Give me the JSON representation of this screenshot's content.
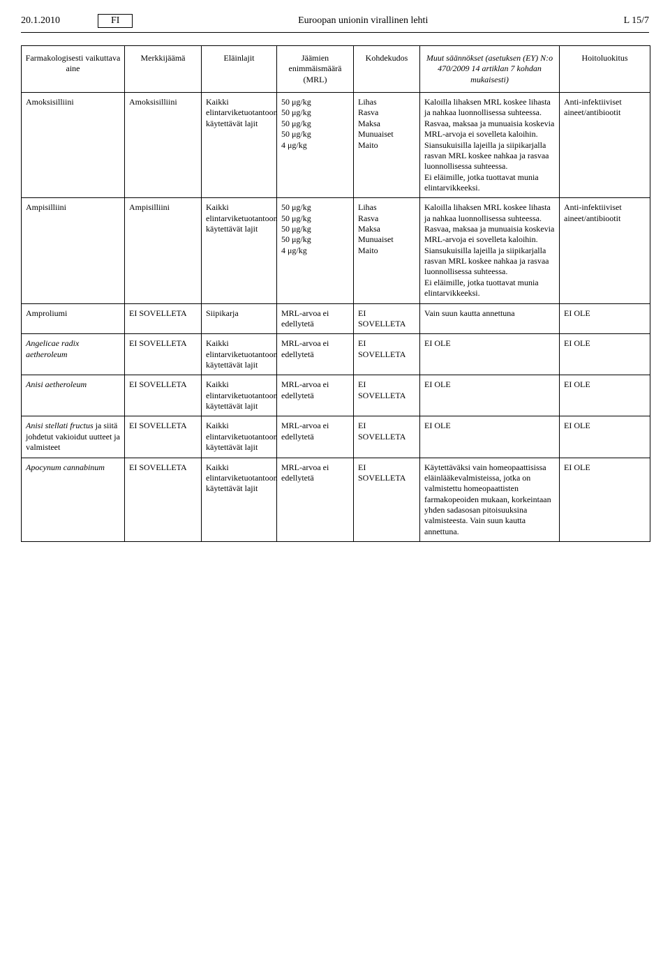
{
  "header": {
    "date": "20.1.2010",
    "lang": "FI",
    "title": "Euroopan unionin virallinen lehti",
    "page": "L 15/7"
  },
  "columns": {
    "c1": "Farmakologisesti vaikuttava aine",
    "c2": "Merkkijäämä",
    "c3": "Eläinlajit",
    "c4": "Jäämien enimmäismäärä (MRL)",
    "c5": "Kohdekudos",
    "c6": "Muut säännökset (asetuksen (EY) N:o 470/2009 14 artiklan 7 kohdan mukaisesti)",
    "c7": "Hoitoluokitus"
  },
  "rows": [
    {
      "c1": "Amoksisilliini",
      "c2": "Amoksisilliini",
      "c3": "Kaikki elintarviketuotantoon käytettävät lajit",
      "c4": "50 μg/kg\n50 μg/kg\n50 μg/kg\n50 μg/kg\n4 μg/kg",
      "c5": "Lihas\nRasva\nMaksa\nMunuaiset\nMaito",
      "c6": "Kaloilla lihaksen MRL koskee lihasta ja nahkaa luonnollisessa suhteessa.\nRasvaa, maksaa ja munuaisia koskevia MRL-arvoja ei sovelleta kaloihin.\nSiansukuisilla lajeilla ja siipikarjalla rasvan MRL koskee nahkaa ja rasvaa luonnollisessa suhteessa.\nEi eläimille, jotka tuottavat munia elintarvikkeeksi.",
      "c7": "Anti-infektiiviset aineet/antibiootit",
      "c1_italic": false
    },
    {
      "c1": "Ampisilliini",
      "c2": "Ampisilliini",
      "c3": "Kaikki elintarviketuotantoon käytettävät lajit",
      "c4": "50 μg/kg\n50 μg/kg\n50 μg/kg\n50 μg/kg\n4 μg/kg",
      "c5": "Lihas\nRasva\nMaksa\nMunuaiset\nMaito",
      "c6": "Kaloilla lihaksen MRL koskee lihasta ja nahkaa luonnollisessa suhteessa.\nRasvaa, maksaa ja munuaisia koskevia MRL-arvoja ei sovelleta kaloihin.\nSiansukuisilla lajeilla ja siipikarjalla rasvan MRL koskee nahkaa ja rasvaa luonnollisessa suhteessa.\nEi eläimille, jotka tuottavat munia elintarvikkeeksi.",
      "c7": "Anti-infektiiviset aineet/antibiootit",
      "c1_italic": false
    },
    {
      "c1": "Amproliumi",
      "c2": "EI SOVELLETA",
      "c3": "Siipikarja",
      "c4": "MRL-arvoa ei edellytetä",
      "c5": "EI SOVELLETA",
      "c6": "Vain suun kautta annettuna",
      "c7": "EI OLE",
      "c1_italic": false
    },
    {
      "c1": "Angelicae radix aetheroleum",
      "c2": "EI SOVELLETA",
      "c3": "Kaikki elintarviketuotantoon käytettävät lajit",
      "c4": "MRL-arvoa ei edellytetä",
      "c5": "EI SOVELLETA",
      "c6": "EI OLE",
      "c7": "EI OLE",
      "c1_italic": true
    },
    {
      "c1": "Anisi aetheroleum",
      "c2": "EI SOVELLETA",
      "c3": "Kaikki elintarviketuotantoon käytettävät lajit",
      "c4": "MRL-arvoa ei edellytetä",
      "c5": "EI SOVELLETA",
      "c6": "EI OLE",
      "c7": "EI OLE",
      "c1_italic": true
    },
    {
      "c1": "Anisi stellati fructus ja siitä johdetut vakioidut uutteet ja valmisteet",
      "c2": "EI SOVELLETA",
      "c3": "Kaikki elintarviketuotantoon käytettävät lajit",
      "c4": "MRL-arvoa ei edellytetä",
      "c5": "EI SOVELLETA",
      "c6": "EI OLE",
      "c7": "EI OLE",
      "c1_italic": true,
      "c1_mixed": "<span class=\"italic\">Anisi stellati fructus</span> ja siitä johdetut vakioidut uutteet ja valmisteet"
    },
    {
      "c1": "Apocynum cannabinum",
      "c2": "EI SOVELLETA",
      "c3": "Kaikki elintarviketuotantoon käytettävät lajit",
      "c4": "MRL-arvoa ei edellytetä",
      "c5": "EI SOVELLETA",
      "c6": "Käytettäväksi vain homeopaattisissa eläinlääkevalmisteissa, jotka on valmistettu homeopaattisten farmakopeoiden mukaan, korkeintaan yhden sadasosan pitoisuuksina valmisteesta. Vain suun kautta annettuna.",
      "c7": "EI OLE",
      "c1_italic": true
    }
  ]
}
